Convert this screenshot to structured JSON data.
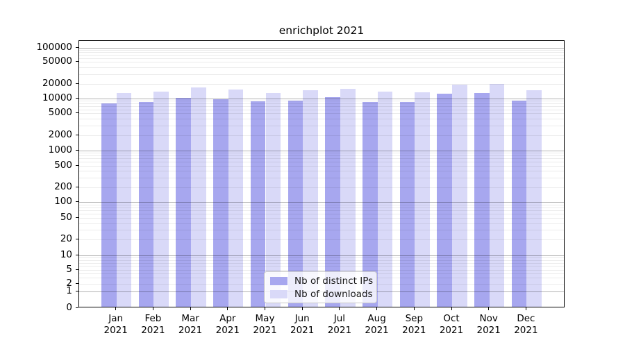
{
  "title": "enrichplot 2021",
  "chart_data": {
    "type": "bar",
    "title": "enrichplot 2021",
    "xlabel": "",
    "ylabel": "",
    "yscale": "symlog",
    "grid": true,
    "legend_position": "lower center",
    "categories": [
      "Jan 2021",
      "Feb 2021",
      "Mar 2021",
      "Apr 2021",
      "May 2021",
      "Jun 2021",
      "Jul 2021",
      "Aug 2021",
      "Sep 2021",
      "Oct 2021",
      "Nov 2021",
      "Dec 2021"
    ],
    "yticks": [
      0,
      1,
      2,
      5,
      10,
      20,
      50,
      100,
      200,
      500,
      1000,
      2000,
      5000,
      10000,
      20000,
      50000,
      100000
    ],
    "ylim": [
      0,
      135000
    ],
    "series": [
      {
        "name": "Nb of distinct IPs",
        "color": "#a7a7ef",
        "values": [
          8100,
          8600,
          10500,
          9800,
          8700,
          9100,
          10600,
          8600,
          8600,
          12500,
          12900,
          9000
        ]
      },
      {
        "name": "Nb of downloads",
        "color": "#d9d9f8",
        "values": [
          13200,
          14000,
          17100,
          15600,
          13200,
          14900,
          16100,
          14000,
          13700,
          19700,
          20300,
          14800
        ]
      }
    ]
  },
  "colors": {
    "series_ips": "#a7a7ef",
    "series_downloads": "#d9d9f8",
    "grid_minor": "#e9e9e9",
    "grid_major": "#b3b3b3",
    "spine": "#000000",
    "legend_border": "#c8c8c8"
  }
}
